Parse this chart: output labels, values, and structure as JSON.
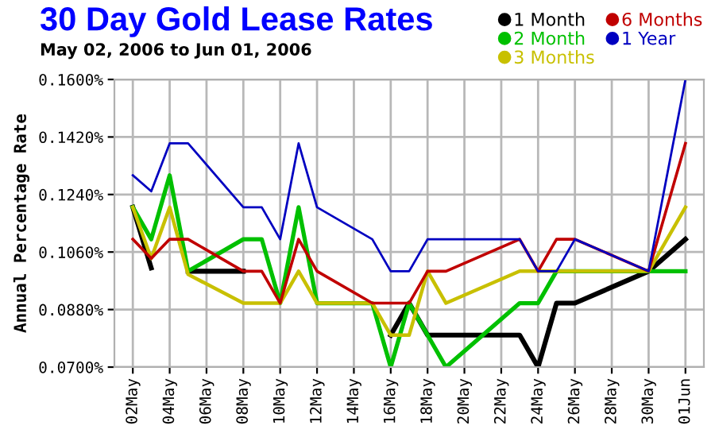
{
  "chart_data": {
    "type": "line",
    "title": "30 Day Gold Lease Rates",
    "subtitle": "May 02, 2006 to Jun 01, 2006",
    "ylabel": "Annual Percentage Rate",
    "x": [
      "2006-05-02",
      "2006-05-03",
      "2006-05-04",
      "2006-05-05",
      "2006-05-08",
      "2006-05-09",
      "2006-05-10",
      "2006-05-11",
      "2006-05-12",
      "2006-05-15",
      "2006-05-16",
      "2006-05-17",
      "2006-05-18",
      "2006-05-19",
      "2006-05-23",
      "2006-05-24",
      "2006-05-25",
      "2006-05-26",
      "2006-05-30",
      "2006-06-01"
    ],
    "series": [
      {
        "name": "1 Month",
        "color": "#000000",
        "values": [
          0.12,
          0.101,
          null,
          0.1,
          0.1,
          null,
          null,
          null,
          null,
          null,
          0.08,
          0.09,
          0.08,
          0.08,
          0.08,
          0.07,
          0.09,
          0.09,
          0.1,
          0.11
        ]
      },
      {
        "name": "2 Month",
        "color": "#00c000",
        "values": [
          0.12,
          0.11,
          0.13,
          0.1,
          0.11,
          0.11,
          0.09,
          0.12,
          0.09,
          0.09,
          0.07,
          0.09,
          0.08,
          0.07,
          0.09,
          0.09,
          0.1,
          0.1,
          0.1,
          0.1
        ]
      },
      {
        "name": "3 Months",
        "color": "#c8c000",
        "values": [
          0.12,
          0.104,
          0.12,
          0.099,
          0.09,
          0.09,
          0.09,
          0.1,
          0.09,
          0.09,
          0.08,
          0.08,
          0.1,
          0.09,
          0.1,
          0.1,
          0.1,
          0.1,
          0.1,
          0.12
        ]
      },
      {
        "name": "6 Months",
        "color": "#c00000",
        "values": [
          0.11,
          0.104,
          0.11,
          0.11,
          0.1,
          0.1,
          0.09,
          0.11,
          0.1,
          0.09,
          0.09,
          0.09,
          0.1,
          0.1,
          0.11,
          0.1,
          0.11,
          0.11,
          0.1,
          0.14
        ]
      },
      {
        "name": "1 Year",
        "color": "#0000c0",
        "values": [
          0.13,
          0.125,
          0.14,
          0.14,
          0.12,
          0.12,
          0.11,
          0.14,
          0.12,
          0.11,
          0.1,
          0.1,
          0.11,
          0.11,
          0.11,
          0.1,
          0.1,
          0.11,
          0.1,
          0.16
        ]
      }
    ],
    "xlim": [
      "2006-05-01",
      "2006-06-02"
    ],
    "xticks": [
      {
        "value": "2006-05-02",
        "label": "02May"
      },
      {
        "value": "2006-05-04",
        "label": "04May"
      },
      {
        "value": "2006-05-06",
        "label": "06May"
      },
      {
        "value": "2006-05-08",
        "label": "08May"
      },
      {
        "value": "2006-05-10",
        "label": "10May"
      },
      {
        "value": "2006-05-12",
        "label": "12May"
      },
      {
        "value": "2006-05-14",
        "label": "14May"
      },
      {
        "value": "2006-05-16",
        "label": "16May"
      },
      {
        "value": "2006-05-18",
        "label": "18May"
      },
      {
        "value": "2006-05-20",
        "label": "20May"
      },
      {
        "value": "2006-05-22",
        "label": "22May"
      },
      {
        "value": "2006-05-24",
        "label": "24May"
      },
      {
        "value": "2006-05-26",
        "label": "26May"
      },
      {
        "value": "2006-05-28",
        "label": "28May"
      },
      {
        "value": "2006-05-30",
        "label": "30May"
      },
      {
        "value": "2006-06-01",
        "label": "01Jun"
      }
    ],
    "ylim": [
      0.07,
      0.16
    ],
    "yticks": [
      {
        "value": 0.07,
        "label": "0.0700%"
      },
      {
        "value": 0.088,
        "label": "0.0880%"
      },
      {
        "value": 0.106,
        "label": "0.1060%"
      },
      {
        "value": 0.124,
        "label": "0.1240%"
      },
      {
        "value": 0.142,
        "label": "0.1420%"
      },
      {
        "value": 0.16,
        "label": "0.1600%"
      }
    ],
    "grid": true,
    "legend": "top right"
  }
}
